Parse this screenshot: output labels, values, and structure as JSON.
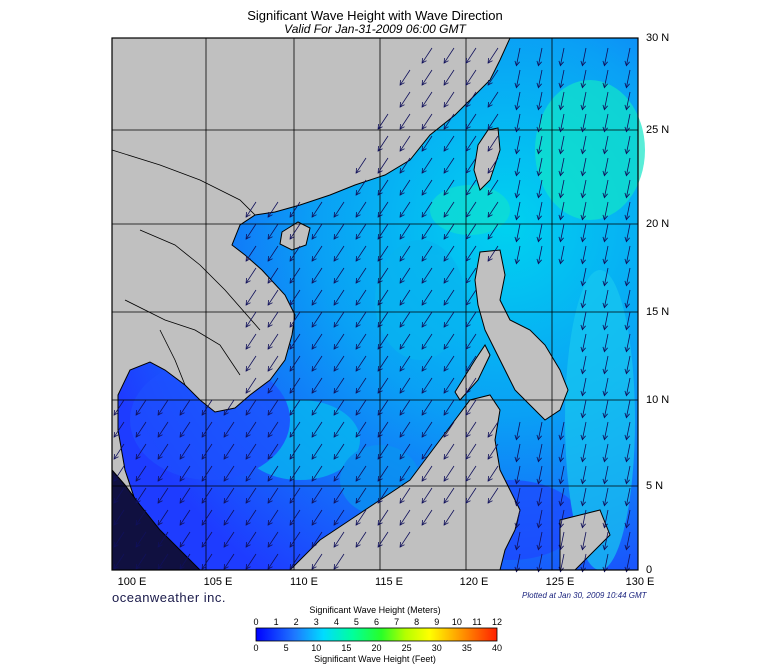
{
  "title": "Significant Wave Height with Wave Direction",
  "subtitle": "Valid For Jan-31-2009 06:00 GMT",
  "lat_labels": [
    "30 N",
    "25 N",
    "20 N",
    "15 N",
    "10 N",
    "5 N",
    "0"
  ],
  "lon_labels": [
    "100 E",
    "105 E",
    "110 E",
    "115 E",
    "120 E",
    "125 E",
    "130 E"
  ],
  "brand": "oceanweather inc.",
  "plotted_at": "Plotted at Jan 30, 2009 10:44 GMT",
  "colorbar": {
    "title_meters": "Significant Wave Height (Meters)",
    "title_feet": "Significant Wave Height (Feet)",
    "meters_ticks": [
      "0",
      "1",
      "2",
      "3",
      "4",
      "5",
      "6",
      "7",
      "8",
      "9",
      "10",
      "11",
      "12"
    ],
    "feet_ticks": [
      "0",
      "5",
      "10",
      "15",
      "20",
      "25",
      "30",
      "35",
      "40"
    ],
    "colors": [
      "#0000ff",
      "#1e50ff",
      "#00a0ff",
      "#00e0ff",
      "#00ffa0",
      "#20ff20",
      "#a0ff00",
      "#ffff00",
      "#ffc800",
      "#ff8c00",
      "#ff5000",
      "#ff2000"
    ]
  },
  "colors": {
    "land": "#c0c0c0",
    "sea_low": "#1e3cff",
    "sea_mid": "#0a8cf0",
    "sea_high": "#00c8f0",
    "grid": "#000000"
  }
}
